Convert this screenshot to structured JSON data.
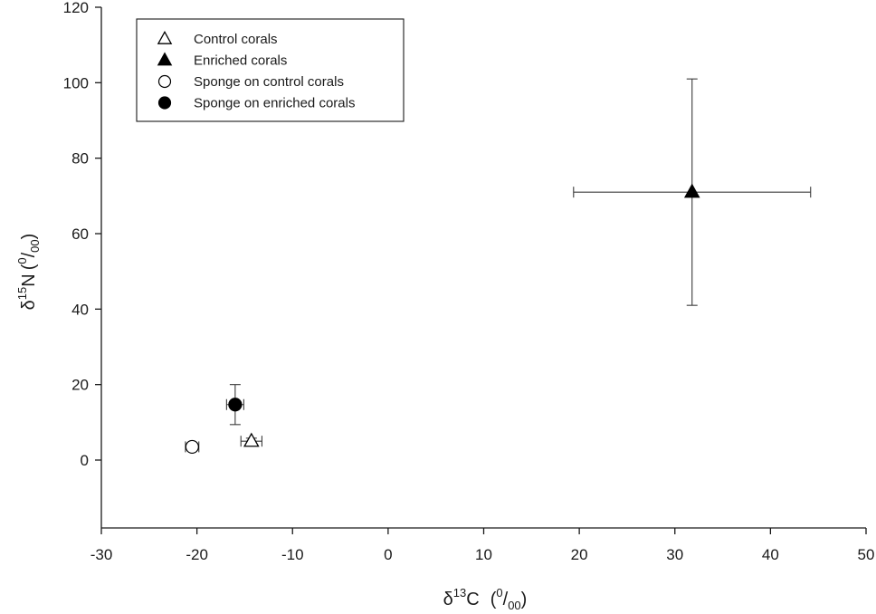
{
  "chart_data": {
    "type": "scatter",
    "title": "",
    "xlabel": {
      "prefix": "δ",
      "iso_sup": "13",
      "element": "C",
      "unit_open": "(",
      "unit_sup": "0",
      "unit_slash": "/",
      "unit_sub": "00",
      "unit_close": ")"
    },
    "ylabel": {
      "prefix": "δ",
      "iso_sup": "15",
      "element": "N",
      "unit_open": "(",
      "unit_sup": "0",
      "unit_slash": "/",
      "unit_sub": "00",
      "unit_close": ")"
    },
    "xlim": [
      -30,
      50
    ],
    "ylim": [
      -18,
      120
    ],
    "xticks": [
      -30,
      -20,
      -10,
      0,
      10,
      20,
      30,
      40,
      50
    ],
    "yticks": [
      0,
      20,
      40,
      60,
      80,
      100,
      120
    ],
    "grid": false,
    "legend_position": "top-left",
    "series": [
      {
        "name": "Control corals",
        "marker": "triangle",
        "filled": false,
        "x": -14.3,
        "y": 5.0,
        "xerr": 1.1,
        "yerr": 0.8
      },
      {
        "name": "Enriched corals",
        "marker": "triangle",
        "filled": true,
        "x": 31.8,
        "y": 71.0,
        "xerr": 12.4,
        "yerr": 30.0
      },
      {
        "name": "Sponge on control corals",
        "marker": "circle",
        "filled": false,
        "x": -20.5,
        "y": 3.5,
        "xerr": 0.7,
        "yerr": 0.6
      },
      {
        "name": "Sponge on enriched corals",
        "marker": "circle",
        "filled": true,
        "x": -16.0,
        "y": 14.7,
        "xerr": 0.9,
        "yerr": 5.3
      }
    ],
    "colors": {
      "marker": "#000000",
      "errorbar": "#3a3a3a",
      "axis": "#1a1a1a",
      "background": "#ffffff"
    }
  }
}
